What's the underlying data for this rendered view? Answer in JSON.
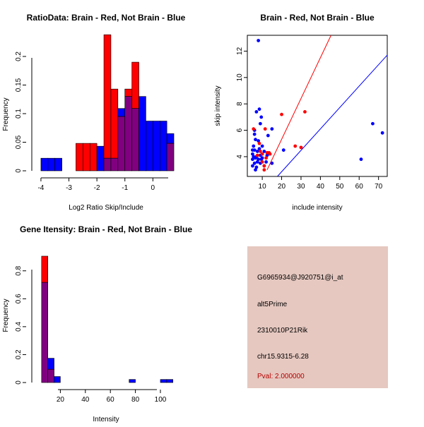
{
  "colors": {
    "brain": "#ff0000",
    "not_brain": "#0000ff",
    "overlap": "#800080",
    "panel_bg": "#e6c8c0",
    "pval": "#b40000"
  },
  "chart_data": [
    {
      "id": "ratio",
      "type": "bar",
      "title": "RatioData: Brain - Red, Not Brain - Blue",
      "xlabel": "Log2 Ratio Skip/Include",
      "ylabel": "Frequency",
      "xlim": [
        -4.2,
        0.85
      ],
      "ylim": [
        0,
        0.237
      ],
      "xticks": [
        -4,
        -3,
        -2,
        -1,
        0
      ],
      "yticks": [
        0,
        0.05,
        0.1,
        0.15,
        0.2
      ],
      "bin_edges": [
        -4,
        -3.75,
        -3.5,
        -3.25,
        -3,
        -2.75,
        -2.5,
        -2.25,
        -2,
        -1.75,
        -1.5,
        -1.25,
        -1,
        -0.75,
        -0.5,
        -0.25,
        0,
        0.25,
        0.5,
        0.75
      ],
      "series": [
        {
          "name": "Brain",
          "values": [
            0,
            0,
            0,
            0,
            0,
            0.048,
            0.048,
            0.048,
            0,
            0.238,
            0.143,
            0.095,
            0.143,
            0.19,
            0,
            0,
            0,
            0,
            0.048,
            0
          ]
        },
        {
          "name": "Not Brain",
          "values": [
            0.022,
            0.022,
            0.022,
            0,
            0,
            0,
            0,
            0,
            0.043,
            0.022,
            0.022,
            0.109,
            0.13,
            0.109,
            0.13,
            0.087,
            0.087,
            0.087,
            0.065,
            0.022
          ]
        }
      ]
    },
    {
      "id": "scatter",
      "type": "scatter",
      "title": "Brain - Red, Not Brain - Blue",
      "xlabel": "include intensity",
      "ylabel": "skip intensity",
      "xlim": [
        2.3,
        74.5
      ],
      "ylim": [
        2.5,
        13.2
      ],
      "xticks": [
        10,
        20,
        30,
        40,
        50,
        60,
        70
      ],
      "yticks": [
        4,
        6,
        8,
        10,
        12
      ],
      "series": [
        {
          "name": "Brain",
          "points": [
            [
              5.5,
              6.1
            ],
            [
              7.5,
              4.1
            ],
            [
              8.5,
              5.0
            ],
            [
              9,
              4.4
            ],
            [
              10,
              4.2
            ],
            [
              11,
              3.3
            ],
            [
              11,
              3.0
            ],
            [
              11.5,
              6.1
            ],
            [
              12.5,
              4.3
            ],
            [
              13.5,
              4.3
            ],
            [
              14,
              4.2
            ],
            [
              20,
              7.2
            ],
            [
              27,
              4.8
            ],
            [
              30,
              4.7
            ],
            [
              32,
              7.4
            ],
            [
              12,
              3.9
            ],
            [
              10,
              3.6
            ]
          ]
        },
        {
          "name": "Not Brain",
          "points": [
            [
              5,
              3.3
            ],
            [
              5,
              3.8
            ],
            [
              5,
              4.5
            ],
            [
              5.5,
              4.8
            ],
            [
              5.5,
              4.0
            ],
            [
              6,
              3.5
            ],
            [
              6,
              4.5
            ],
            [
              6,
              5.7
            ],
            [
              6.5,
              3.0
            ],
            [
              6.5,
              5.3
            ],
            [
              7,
              3.2
            ],
            [
              7,
              4.0
            ],
            [
              7,
              7.4
            ],
            [
              7.5,
              3.6
            ],
            [
              8,
              3.8
            ],
            [
              8,
              12.8
            ],
            [
              8.5,
              7.6
            ],
            [
              9,
              3.5
            ],
            [
              9,
              4.1
            ],
            [
              9,
              6.5
            ],
            [
              9.5,
              7.0
            ],
            [
              10,
              3.9
            ],
            [
              10,
              4.8
            ],
            [
              11,
              4.4
            ],
            [
              12,
              3.6
            ],
            [
              12.5,
              4.1
            ],
            [
              13,
              5.6
            ],
            [
              15,
              3.5
            ],
            [
              15,
              6.1
            ],
            [
              21,
              4.5
            ],
            [
              61,
              3.8
            ],
            [
              67,
              6.5
            ],
            [
              72,
              5.8
            ],
            [
              5,
              4.2
            ],
            [
              6,
              6.0
            ],
            [
              7.5,
              4.4
            ],
            [
              8,
              5.2
            ],
            [
              9.5,
              3.8
            ],
            [
              11,
              3.3
            ],
            [
              13,
              4.2
            ],
            [
              6.5,
              3.9
            ],
            [
              8.5,
              4.6
            ]
          ]
        }
      ],
      "fit_lines": [
        {
          "name": "Brain fit",
          "points": [
            [
              12.5,
              3.0
            ],
            [
              45.5,
              13.2
            ]
          ]
        },
        {
          "name": "Not Brain fit",
          "points": [
            [
              17.8,
              2.5
            ],
            [
              74.5,
              11.7
            ]
          ]
        }
      ]
    },
    {
      "id": "intensity",
      "type": "bar",
      "title": "Gene Itensity: Brain - Red, Not Brain - Blue",
      "xlabel": "Intensity",
      "ylabel": "Frequency",
      "xlim": [
        0,
        113
      ],
      "ylim": [
        0,
        0.92
      ],
      "xticks": [
        20,
        40,
        60,
        80,
        100
      ],
      "yticks": [
        0,
        0.2,
        0.4,
        0.6,
        0.8
      ],
      "bin_edges": [
        5,
        10,
        15,
        20,
        25,
        30,
        35,
        40,
        45,
        50,
        55,
        60,
        65,
        70,
        75,
        80,
        85,
        90,
        95,
        100,
        105,
        110
      ],
      "series": [
        {
          "name": "Brain",
          "values": [
            0.905,
            0.095,
            0,
            0,
            0,
            0,
            0,
            0,
            0,
            0,
            0,
            0,
            0,
            0,
            0.0,
            0,
            0,
            0,
            0,
            0,
            0
          ]
        },
        {
          "name": "Not Brain",
          "values": [
            0.717,
            0.174,
            0.043,
            0,
            0,
            0,
            0,
            0,
            0,
            0,
            0,
            0,
            0,
            0,
            0.022,
            0,
            0,
            0,
            0,
            0.022,
            0.022
          ]
        }
      ]
    }
  ],
  "info_panel": {
    "probe_id": "G6965934@J920751@i_at",
    "event_type": "alt5Prime",
    "gene": "2310010P21Rik",
    "location": "chr15.9315-6.28",
    "pval": "Pval: 2.000000"
  }
}
